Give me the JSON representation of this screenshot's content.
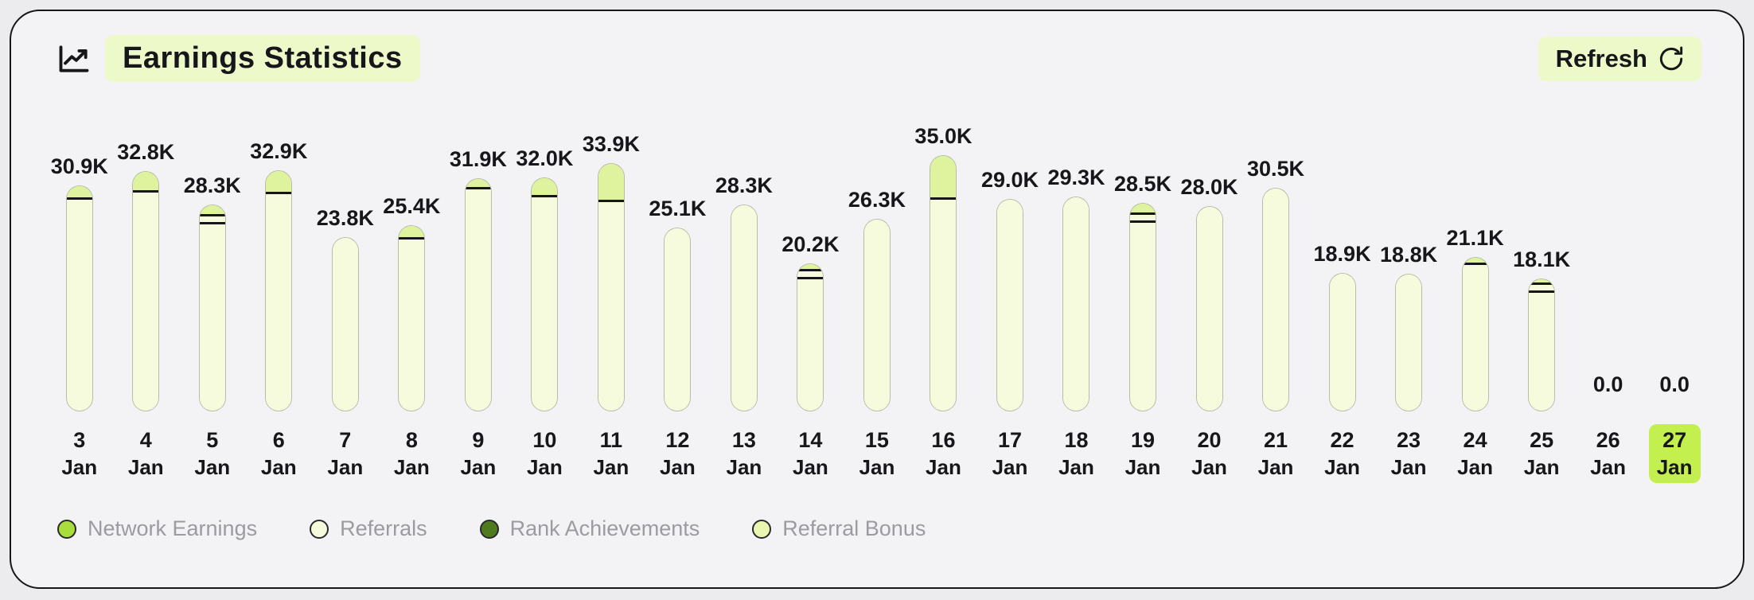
{
  "header": {
    "title": "Earnings Statistics",
    "refresh_label": "Refresh"
  },
  "colors": {
    "accent_pill": "#edf9c9",
    "referrals": "#f6fbde",
    "referral_bonus": "#dff39e",
    "rank_achievements": "#3f5b16",
    "network_earnings": "#a8dd3c",
    "current_day_highlight": "#c3ef4f",
    "card_background": "#f3f3f5",
    "page_background": "#ececee",
    "outline": "#17171b"
  },
  "legend": [
    {
      "label": "Network Earnings",
      "color": "#a8dd3c"
    },
    {
      "label": "Referrals",
      "color": "#f6fbde"
    },
    {
      "label": "Rank Achievements",
      "color": "#4f7a1e"
    },
    {
      "label": "Referral Bonus",
      "color": "#e9f7b0"
    }
  ],
  "chart_data": {
    "type": "bar",
    "stacked": true,
    "title": "Earnings Statistics",
    "unit": "K",
    "ylim": [
      0,
      35
    ],
    "grid": false,
    "legend_position": "bottom",
    "categories": [
      "3 Jan",
      "4 Jan",
      "5 Jan",
      "6 Jan",
      "7 Jan",
      "8 Jan",
      "9 Jan",
      "10 Jan",
      "11 Jan",
      "12 Jan",
      "13 Jan",
      "14 Jan",
      "15 Jan",
      "16 Jan",
      "17 Jan",
      "18 Jan",
      "19 Jan",
      "20 Jan",
      "21 Jan",
      "22 Jan",
      "23 Jan",
      "24 Jan",
      "25 Jan",
      "26 Jan",
      "27 Jan"
    ],
    "bars": [
      {
        "day": "3",
        "month": "Jan",
        "label": "30.9K",
        "total": 30.9,
        "referral_bonus": 1.8,
        "rank_achievements": 0,
        "highlight": false
      },
      {
        "day": "4",
        "month": "Jan",
        "label": "32.8K",
        "total": 32.8,
        "referral_bonus": 2.8,
        "rank_achievements": 0,
        "highlight": false
      },
      {
        "day": "5",
        "month": "Jan",
        "label": "28.3K",
        "total": 28.3,
        "referral_bonus": 1.5,
        "rank_achievements": 0.3,
        "highlight": false
      },
      {
        "day": "6",
        "month": "Jan",
        "label": "32.9K",
        "total": 32.9,
        "referral_bonus": 3.2,
        "rank_achievements": 0,
        "highlight": false
      },
      {
        "day": "7",
        "month": "Jan",
        "label": "23.8K",
        "total": 23.8,
        "referral_bonus": 0,
        "rank_achievements": 0,
        "highlight": false
      },
      {
        "day": "8",
        "month": "Jan",
        "label": "25.4K",
        "total": 25.4,
        "referral_bonus": 1.8,
        "rank_achievements": 0,
        "highlight": false
      },
      {
        "day": "9",
        "month": "Jan",
        "label": "31.9K",
        "total": 31.9,
        "referral_bonus": 1.4,
        "rank_achievements": 0,
        "highlight": false
      },
      {
        "day": "10",
        "month": "Jan",
        "label": "32.0K",
        "total": 32.0,
        "referral_bonus": 2.6,
        "rank_achievements": 0,
        "highlight": false
      },
      {
        "day": "11",
        "month": "Jan",
        "label": "33.9K",
        "total": 33.9,
        "referral_bonus": 5.2,
        "rank_achievements": 0,
        "highlight": false
      },
      {
        "day": "12",
        "month": "Jan",
        "label": "25.1K",
        "total": 25.1,
        "referral_bonus": 0,
        "rank_achievements": 0,
        "highlight": false
      },
      {
        "day": "13",
        "month": "Jan",
        "label": "28.3K",
        "total": 28.3,
        "referral_bonus": 0,
        "rank_achievements": 0,
        "highlight": false
      },
      {
        "day": "14",
        "month": "Jan",
        "label": "20.2K",
        "total": 20.2,
        "referral_bonus": 1.0,
        "rank_achievements": 0.3,
        "highlight": false
      },
      {
        "day": "15",
        "month": "Jan",
        "label": "26.3K",
        "total": 26.3,
        "referral_bonus": 0,
        "rank_achievements": 0,
        "highlight": false
      },
      {
        "day": "16",
        "month": "Jan",
        "label": "35.0K",
        "total": 35.0,
        "referral_bonus": 6.0,
        "rank_achievements": 0,
        "highlight": false
      },
      {
        "day": "17",
        "month": "Jan",
        "label": "29.0K",
        "total": 29.0,
        "referral_bonus": 0,
        "rank_achievements": 0,
        "highlight": false
      },
      {
        "day": "18",
        "month": "Jan",
        "label": "29.3K",
        "total": 29.3,
        "referral_bonus": 0,
        "rank_achievements": 0,
        "highlight": false
      },
      {
        "day": "19",
        "month": "Jan",
        "label": "28.5K",
        "total": 28.5,
        "referral_bonus": 1.5,
        "rank_achievements": 0.3,
        "highlight": false
      },
      {
        "day": "20",
        "month": "Jan",
        "label": "28.0K",
        "total": 28.0,
        "referral_bonus": 0,
        "rank_achievements": 0,
        "highlight": false
      },
      {
        "day": "21",
        "month": "Jan",
        "label": "30.5K",
        "total": 30.5,
        "referral_bonus": 0,
        "rank_achievements": 0,
        "highlight": false
      },
      {
        "day": "22",
        "month": "Jan",
        "label": "18.9K",
        "total": 18.9,
        "referral_bonus": 0,
        "rank_achievements": 0,
        "highlight": false
      },
      {
        "day": "23",
        "month": "Jan",
        "label": "18.8K",
        "total": 18.8,
        "referral_bonus": 0,
        "rank_achievements": 0,
        "highlight": false
      },
      {
        "day": "24",
        "month": "Jan",
        "label": "21.1K",
        "total": 21.1,
        "referral_bonus": 1.0,
        "rank_achievements": 0,
        "highlight": false
      },
      {
        "day": "25",
        "month": "Jan",
        "label": "18.1K",
        "total": 18.1,
        "referral_bonus": 0.8,
        "rank_achievements": 0.3,
        "highlight": false
      },
      {
        "day": "26",
        "month": "Jan",
        "label": "0.0",
        "total": 0,
        "referral_bonus": 0,
        "rank_achievements": 0,
        "highlight": false
      },
      {
        "day": "27",
        "month": "Jan",
        "label": "0.0",
        "total": 0,
        "referral_bonus": 0,
        "rank_achievements": 0,
        "highlight": true
      }
    ]
  }
}
